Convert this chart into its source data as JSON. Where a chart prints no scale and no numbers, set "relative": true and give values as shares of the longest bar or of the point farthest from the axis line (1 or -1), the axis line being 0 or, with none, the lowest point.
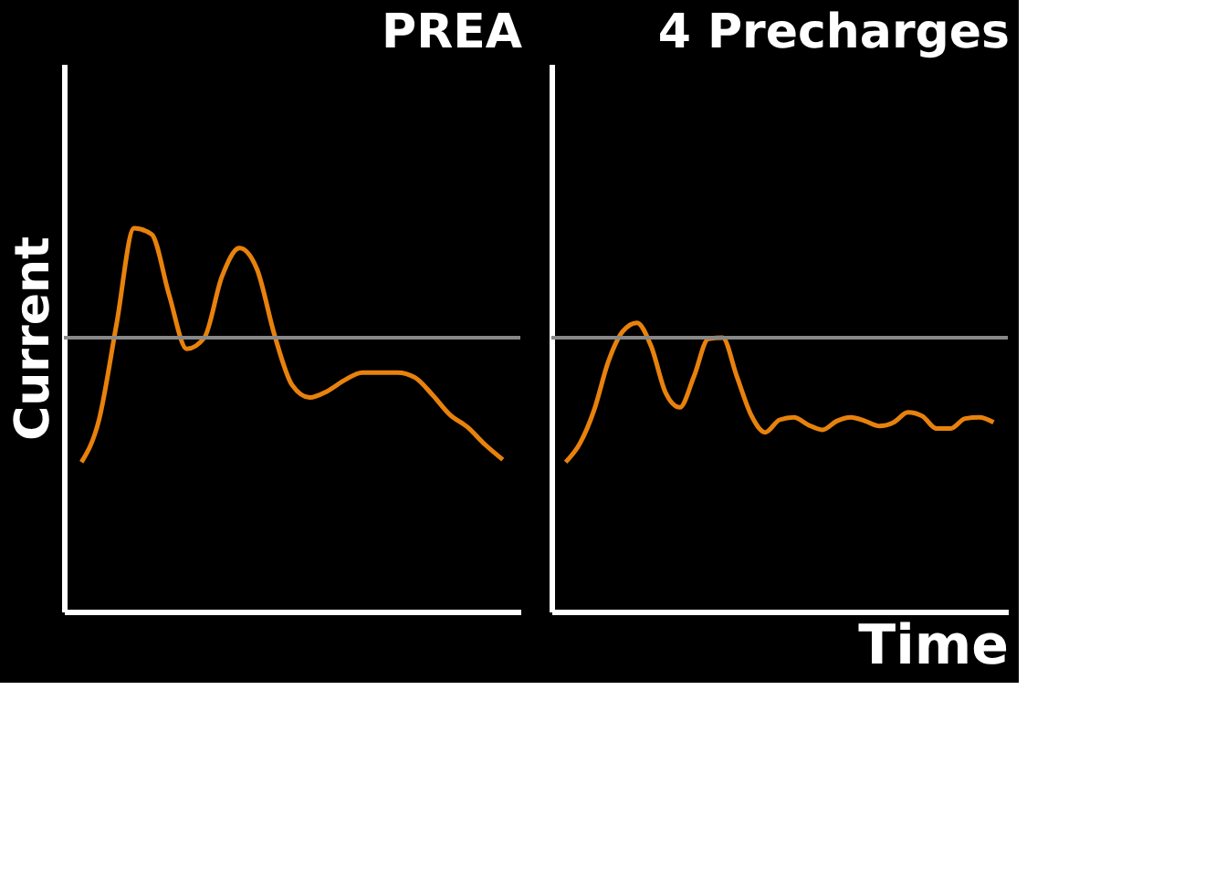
{
  "chart_data": [
    {
      "type": "line",
      "title": "PREA",
      "ylabel": "Current",
      "relative": true,
      "grid": false,
      "marker": "none",
      "line_style": "solid",
      "categories": [
        null,
        null,
        null,
        null,
        null,
        null,
        null,
        null,
        null,
        null,
        null,
        null,
        null,
        null,
        null,
        null,
        null,
        null,
        null,
        null,
        null,
        null,
        null,
        null,
        null
      ],
      "series": [
        {
          "color": "#e8820c",
          "values": [
            -1.0,
            -0.66,
            0.11,
            0.88,
            0.83,
            0.34,
            -0.09,
            0,
            0.49,
            0.72,
            0.55,
            0.02,
            -0.38,
            -0.48,
            -0.43,
            -0.34,
            -0.28,
            -0.28,
            -0.28,
            -0.32,
            -0.46,
            -0.62,
            -0.72,
            -0.86,
            -0.98
          ]
        }
      ]
    },
    {
      "type": "line",
      "title": "4 Precharges",
      "xlabel": "Time",
      "relative": true,
      "grid": false,
      "marker": "none",
      "line_style": "solid",
      "categories": [
        null,
        null,
        null,
        null,
        null,
        null,
        null,
        null,
        null,
        null,
        null,
        null,
        null,
        null,
        null,
        null,
        null,
        null,
        null,
        null,
        null,
        null,
        null,
        null,
        null,
        null,
        null,
        null,
        null,
        null,
        null
      ],
      "series": [
        {
          "color": "#e8820c",
          "values": [
            -1.0,
            -0.85,
            -0.58,
            -0.19,
            0.05,
            0.12,
            -0.07,
            -0.44,
            -0.56,
            -0.31,
            -0.01,
            0,
            -0.31,
            -0.62,
            -0.76,
            -0.66,
            -0.64,
            -0.7,
            -0.74,
            -0.67,
            -0.64,
            -0.67,
            -0.71,
            -0.68,
            -0.6,
            -0.63,
            -0.73,
            -0.73,
            -0.65,
            -0.64,
            -0.68
          ]
        }
      ]
    }
  ]
}
